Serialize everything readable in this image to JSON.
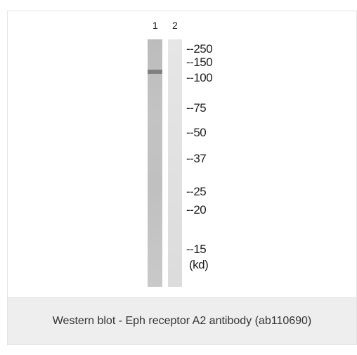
{
  "blot": {
    "lanes": [
      "1",
      "2"
    ],
    "markers": [
      "--250",
      "--150",
      "--100",
      "--75",
      "--50",
      "--37",
      "--25",
      "--20",
      "--15"
    ],
    "unit": "(kd)"
  },
  "caption": "Western blot - Eph receptor A2 antibody (ab110690)"
}
